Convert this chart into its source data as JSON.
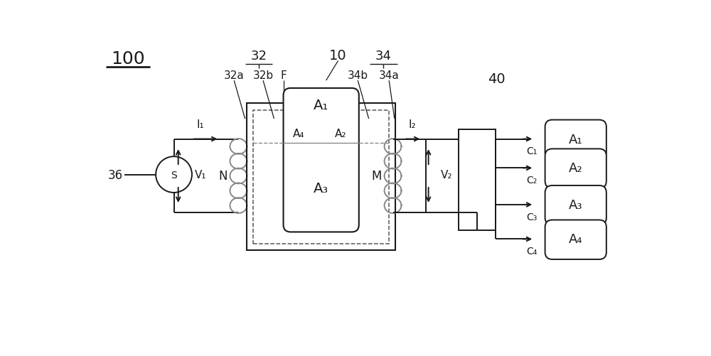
{
  "bg_color": "#ffffff",
  "line_color": "#1a1a1a",
  "gray_color": "#888888",
  "fig_width": 10.0,
  "fig_height": 5.02,
  "label_100": "100",
  "label_36": "36",
  "label_32": "32",
  "label_32a": "32a",
  "label_32b": "32b",
  "label_34": "34",
  "label_34a": "34a",
  "label_34b": "34b",
  "label_10": "10",
  "label_40": "40",
  "label_F": "F",
  "label_N": "N",
  "label_M": "M",
  "label_I1": "I₁",
  "label_I2": "I₂",
  "label_V1": "V₁",
  "label_V2": "V₂",
  "label_A1_core": "A₁",
  "label_A2": "A₂",
  "label_A3": "A₃",
  "label_A4": "A₄",
  "label_C1": "C₁",
  "label_C2": "C₂",
  "label_C3": "C₃",
  "label_C4": "C₄",
  "label_box_A1": "A₁",
  "label_box_A2": "A₂",
  "label_box_A3": "A₃",
  "label_box_A4": "A₄"
}
